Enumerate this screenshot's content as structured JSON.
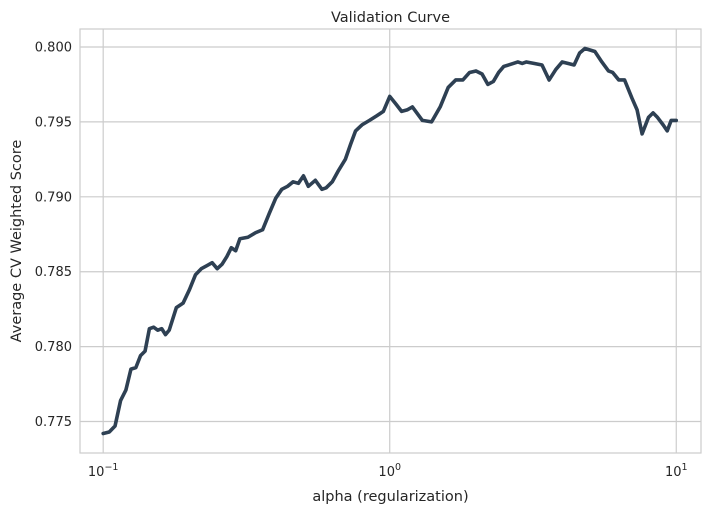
{
  "chart_data": {
    "type": "line",
    "title": "Validation Curve",
    "xlabel": "alpha (regularization)",
    "ylabel": "Average CV Weighted Score",
    "xscale": "log",
    "xlim": [
      0.083,
      12.2
    ],
    "ylim": [
      0.7729,
      0.8012
    ],
    "grid": true,
    "line_color": "#2e4053",
    "x_ticks": [
      {
        "value": 0.1,
        "base": "10",
        "exp": "−1"
      },
      {
        "value": 1,
        "base": "10",
        "exp": "0"
      },
      {
        "value": 10,
        "base": "10",
        "exp": "1"
      }
    ],
    "y_ticks": [
      {
        "value": 0.775,
        "label": "0.775"
      },
      {
        "value": 0.78,
        "label": "0.780"
      },
      {
        "value": 0.785,
        "label": "0.785"
      },
      {
        "value": 0.79,
        "label": "0.790"
      },
      {
        "value": 0.795,
        "label": "0.795"
      },
      {
        "value": 0.8,
        "label": "0.800"
      }
    ],
    "series": [
      {
        "x": [
          0.1,
          0.105,
          0.11,
          0.115,
          0.12,
          0.125,
          0.13,
          0.135,
          0.14,
          0.145,
          0.15,
          0.155,
          0.16,
          0.165,
          0.17,
          0.18,
          0.19,
          0.2,
          0.21,
          0.22,
          0.23,
          0.24,
          0.25,
          0.26,
          0.27,
          0.28,
          0.29,
          0.3,
          0.32,
          0.34,
          0.36,
          0.38,
          0.4,
          0.42,
          0.44,
          0.46,
          0.48,
          0.5,
          0.52,
          0.55,
          0.58,
          0.6,
          0.63,
          0.66,
          0.7,
          0.73,
          0.76,
          0.8,
          0.85,
          0.9,
          0.95,
          1.0,
          1.05,
          1.1,
          1.15,
          1.2,
          1.3,
          1.4,
          1.5,
          1.6,
          1.7,
          1.8,
          1.9,
          2.0,
          2.1,
          2.2,
          2.3,
          2.4,
          2.5,
          2.6,
          2.7,
          2.8,
          2.9,
          3.0,
          3.2,
          3.4,
          3.6,
          3.8,
          4.0,
          4.2,
          4.4,
          4.6,
          4.8,
          5.0,
          5.2,
          5.5,
          5.8,
          6.0,
          6.3,
          6.6,
          7.0,
          7.3,
          7.6,
          8.0,
          8.3,
          8.6,
          9.0,
          9.3,
          9.6,
          10.0
        ],
        "y": [
          0.7742,
          0.7743,
          0.7747,
          0.7764,
          0.7771,
          0.7785,
          0.7786,
          0.7794,
          0.7797,
          0.7812,
          0.7813,
          0.7811,
          0.7812,
          0.7808,
          0.7811,
          0.7826,
          0.7829,
          0.7838,
          0.7848,
          0.7852,
          0.7854,
          0.7856,
          0.7852,
          0.7855,
          0.786,
          0.7866,
          0.7864,
          0.7872,
          0.7873,
          0.7876,
          0.7878,
          0.7889,
          0.7899,
          0.7905,
          0.7907,
          0.791,
          0.7909,
          0.7914,
          0.7907,
          0.7911,
          0.7905,
          0.7906,
          0.791,
          0.7917,
          0.7925,
          0.7935,
          0.7944,
          0.7948,
          0.7951,
          0.7954,
          0.7957,
          0.7967,
          0.7962,
          0.7957,
          0.7958,
          0.796,
          0.7951,
          0.795,
          0.796,
          0.7973,
          0.7978,
          0.7978,
          0.7983,
          0.7984,
          0.7982,
          0.7975,
          0.7977,
          0.7983,
          0.7987,
          0.7988,
          0.7989,
          0.799,
          0.7989,
          0.799,
          0.7989,
          0.7988,
          0.7978,
          0.7985,
          0.799,
          0.7989,
          0.7988,
          0.7996,
          0.7999,
          0.7998,
          0.7997,
          0.799,
          0.7984,
          0.7983,
          0.7978,
          0.7978,
          0.7966,
          0.7958,
          0.7942,
          0.7953,
          0.7956,
          0.7953,
          0.7948,
          0.7944,
          0.7951,
          0.7951
        ]
      }
    ]
  }
}
